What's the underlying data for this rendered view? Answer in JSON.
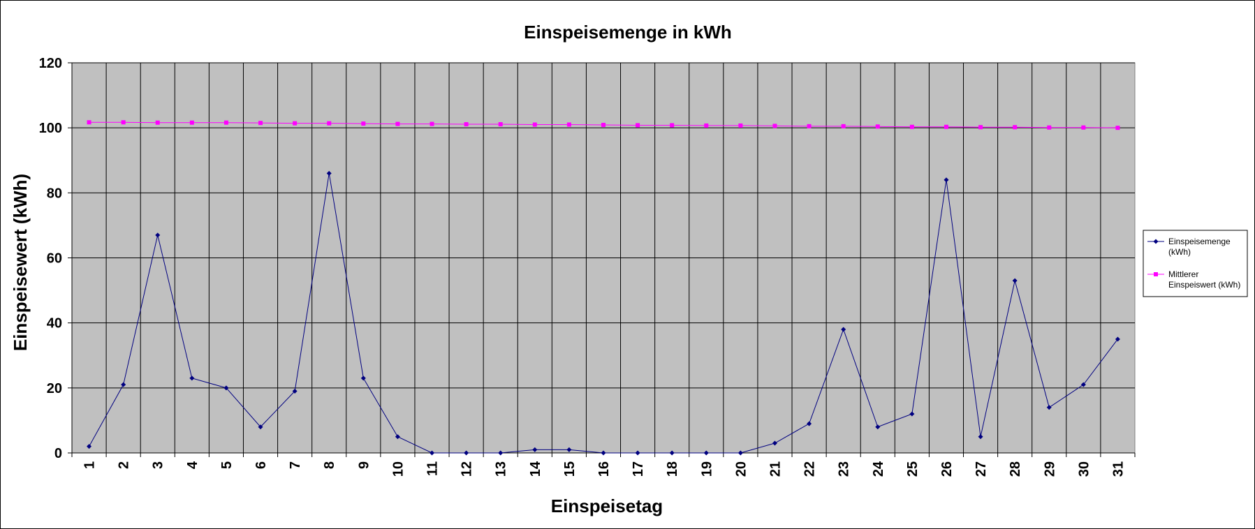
{
  "chart_data": {
    "type": "line",
    "title": "Einspeisemenge in kWh",
    "xlabel": "Einspeisetag",
    "ylabel": "Einspeisewert  (kWh)",
    "ylim": [
      0,
      120
    ],
    "yticks": [
      0,
      20,
      40,
      60,
      80,
      100,
      120
    ],
    "grid": true,
    "legend_position": "right",
    "plot_background": "#C0C0C0",
    "x": [
      1,
      2,
      3,
      4,
      5,
      6,
      7,
      8,
      9,
      10,
      11,
      12,
      13,
      14,
      15,
      16,
      17,
      18,
      19,
      20,
      21,
      22,
      23,
      24,
      25,
      26,
      27,
      28,
      29,
      30,
      31
    ],
    "series": [
      {
        "name": "Einspeisemenge (kWh)",
        "legend_lines": [
          "Einspeisemenge",
          "(kWh)"
        ],
        "color": "#000080",
        "marker": "diamond",
        "values": [
          2,
          21,
          67,
          23,
          20,
          8,
          19,
          86,
          23,
          5,
          0,
          0,
          0,
          1,
          1,
          0,
          0,
          0,
          0,
          0,
          3,
          9,
          38,
          8,
          12,
          84,
          5,
          53,
          14,
          21,
          35
        ]
      },
      {
        "name": "Mittlerer Einspeiswert (kWh)",
        "legend_lines": [
          "Mittlerer",
          "Einspeiswert (kWh)"
        ],
        "color": "#FF00FF",
        "marker": "square",
        "values": [
          101.7,
          101.7,
          101.6,
          101.6,
          101.6,
          101.5,
          101.4,
          101.4,
          101.3,
          101.2,
          101.2,
          101.1,
          101.1,
          101.0,
          101.0,
          100.9,
          100.8,
          100.8,
          100.7,
          100.7,
          100.6,
          100.5,
          100.5,
          100.4,
          100.3,
          100.3,
          100.2,
          100.2,
          100.1,
          100.1,
          100.0
        ]
      }
    ]
  }
}
